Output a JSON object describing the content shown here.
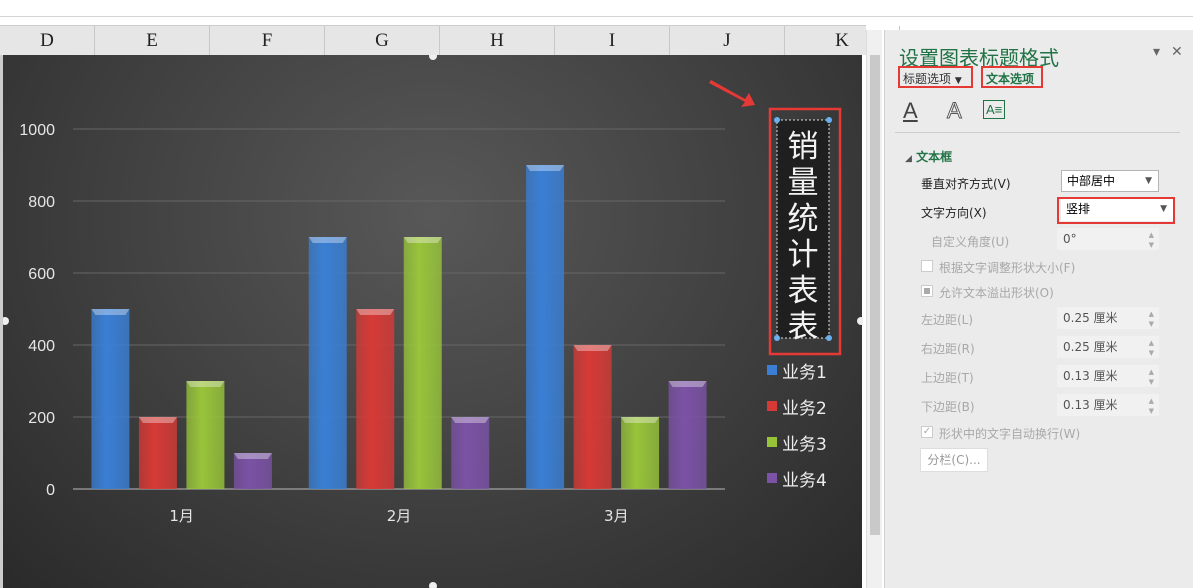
{
  "sheet": {
    "columns": [
      "D",
      "E",
      "F",
      "G",
      "H",
      "I",
      "J",
      "K"
    ]
  },
  "chart_data": {
    "type": "bar",
    "title": "销量统计表表",
    "categories": [
      "1月",
      "2月",
      "3月"
    ],
    "series": [
      {
        "name": "业务1",
        "values": [
          500,
          700,
          900
        ],
        "color": "#3a7fd5"
      },
      {
        "name": "业务2",
        "values": [
          200,
          500,
          400
        ],
        "color": "#d63a36"
      },
      {
        "name": "业务3",
        "values": [
          300,
          700,
          200
        ],
        "color": "#98c43a"
      },
      {
        "name": "业务4",
        "values": [
          100,
          200,
          300
        ],
        "color": "#7b52a6"
      }
    ],
    "yticks": [
      "0",
      "200",
      "400",
      "600",
      "800",
      "1000"
    ],
    "ylim": [
      0,
      1000
    ],
    "grid": true,
    "legend": "right"
  },
  "panel": {
    "title": "设置图表标题格式",
    "tab_title_options": "标题选项",
    "tab_text_options": "文本选项",
    "section": "文本框",
    "vertical_align_label": "垂直对齐方式(V)",
    "vertical_align_value": "中部居中",
    "text_direction_label": "文字方向(X)",
    "text_direction_value": "竖排",
    "custom_angle_label": "自定义角度(U)",
    "custom_angle_value": "0°",
    "resize_shape_label": "根据文字调整形状大小(F)",
    "allow_overflow_label": "允许文本溢出形状(O)",
    "left_margin_label": "左边距(L)",
    "left_margin_value": "0.25 厘米",
    "right_margin_label": "右边距(R)",
    "right_margin_value": "0.25 厘米",
    "top_margin_label": "上边距(T)",
    "top_margin_value": "0.13 厘米",
    "bottom_margin_label": "下边距(B)",
    "bottom_margin_value": "0.13 厘米",
    "wrap_label": "形状中的文字自动换行(W)",
    "columns_button": "分栏(C)..."
  }
}
